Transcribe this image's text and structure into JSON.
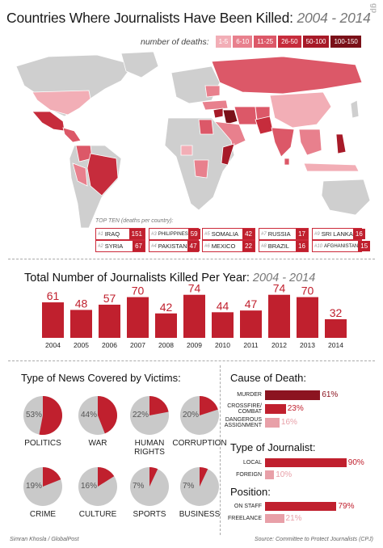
{
  "header": {
    "title": "Countries Where Journalists Have Been Killed:",
    "years": "2004 - 2014",
    "logo": "gp"
  },
  "legend": {
    "label": "number of deaths:",
    "items": [
      {
        "label": "1-5",
        "color": "#f2aeb6"
      },
      {
        "label": "6-10",
        "color": "#e8808d"
      },
      {
        "label": "11-25",
        "color": "#dc5868"
      },
      {
        "label": "26-50",
        "color": "#c62c3c"
      },
      {
        "label": "50-100",
        "color": "#a71a28"
      },
      {
        "label": "100-150",
        "color": "#7a1018"
      }
    ]
  },
  "top_ten": {
    "label": "TOP TEN (deaths per country):",
    "items": [
      {
        "rank": "#1",
        "country": "IRAQ",
        "value": "151"
      },
      {
        "rank": "#2",
        "country": "SYRIA",
        "value": "67"
      },
      {
        "rank": "#3",
        "country": "PHILIPPINES",
        "value": "59"
      },
      {
        "rank": "#4",
        "country": "PAKISTAN",
        "value": "47"
      },
      {
        "rank": "#5",
        "country": "SOMALIA",
        "value": "42"
      },
      {
        "rank": "#6",
        "country": "MEXICO",
        "value": "22"
      },
      {
        "rank": "#7",
        "country": "RUSSIA",
        "value": "17"
      },
      {
        "rank": "#8",
        "country": "BRAZIL",
        "value": "16"
      },
      {
        "rank": "#9",
        "country": "SRI LANKA",
        "value": "16"
      },
      {
        "rank": "#10",
        "country": "AFGHANISTAN",
        "value": "15"
      }
    ]
  },
  "per_year": {
    "title": "Total Number of Journalists Killed Per Year:",
    "years": "2004 - 2014"
  },
  "victims": {
    "title": "Type of News Covered by Victims:"
  },
  "cause": {
    "title": "Cause of Death:"
  },
  "journalist_type": {
    "title": "Type of Journalist:"
  },
  "position": {
    "title": "Position:"
  },
  "footer": {
    "credit": "Simran Khosla / GlobalPost",
    "source": "Source: Committee to Protect Journalists (CPJ)"
  },
  "colors": {
    "bar": "#c0202e",
    "pie_fill": "#c0202e",
    "pie_bg": "#c9c9c9",
    "dark": "#8c1420",
    "light": "#e8a0a8",
    "land": "#cfcfcf"
  },
  "chart_data": [
    {
      "type": "bar",
      "title": "Total Number of Journalists Killed Per Year: 2004 - 2014",
      "categories": [
        "2004",
        "2005",
        "2006",
        "2007",
        "2008",
        "2009",
        "2010",
        "2011",
        "2012",
        "2013",
        "2014"
      ],
      "values": [
        61,
        48,
        57,
        70,
        42,
        74,
        44,
        47,
        74,
        70,
        32
      ]
    },
    {
      "type": "pie",
      "title": "Type of News Covered by Victims:",
      "categories": [
        "POLITICS",
        "WAR",
        "HUMAN RIGHTS",
        "CORRUPTION",
        "CRIME",
        "CULTURE",
        "SPORTS",
        "BUSINESS"
      ],
      "values": [
        53,
        44,
        22,
        20,
        19,
        16,
        7,
        7
      ],
      "labels": [
        "53%",
        "44%",
        "22%",
        "20%",
        "19%",
        "16%",
        "7%",
        "7%"
      ]
    },
    {
      "type": "bar",
      "title": "Cause of Death:",
      "categories": [
        "MURDER",
        "CROSSFIRE/ COMBAT",
        "DANGEROUS ASSIGNMENT"
      ],
      "values": [
        61,
        23,
        16
      ],
      "labels": [
        "61%",
        "23%",
        "16%"
      ]
    },
    {
      "type": "bar",
      "title": "Type of Journalist:",
      "categories": [
        "LOCAL",
        "FOREIGN"
      ],
      "values": [
        90,
        10
      ],
      "labels": [
        "90%",
        "10%"
      ]
    },
    {
      "type": "bar",
      "title": "Position:",
      "categories": [
        "ON STAFF",
        "FREELANCE"
      ],
      "values": [
        79,
        21
      ],
      "labels": [
        "79%",
        "21%"
      ]
    }
  ]
}
